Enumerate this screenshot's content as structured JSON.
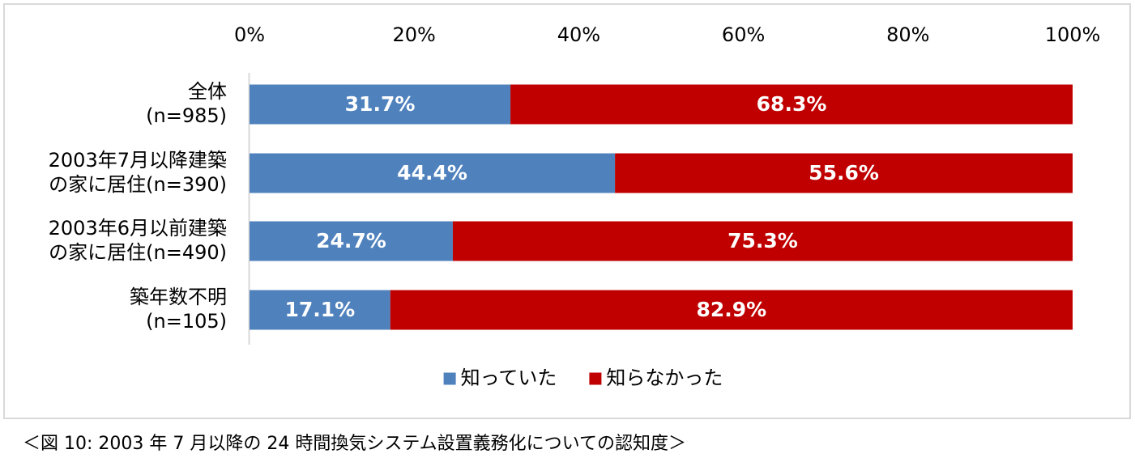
{
  "caption": "＜図 10: 2003 年 7 月以降の 24 時間換気システム設置義務化についての認知度＞",
  "chart_data": {
    "type": "bar",
    "orientation": "horizontal",
    "stacked": true,
    "percent_stacked": true,
    "categories": [
      [
        "全体",
        "(n=985)"
      ],
      [
        "2003年7月以降建築",
        "の家に居住(n=390)"
      ],
      [
        "2003年6月以前建築",
        "の家に居住(n=490)"
      ],
      [
        "築年数不明",
        "(n=105)"
      ]
    ],
    "series": [
      {
        "name": "知っていた",
        "color": "#4f81bd",
        "values": [
          31.7,
          44.4,
          24.7,
          17.1
        ],
        "labels": [
          "31.7%",
          "44.4%",
          "24.7%",
          "17.1%"
        ]
      },
      {
        "name": "知らなかった",
        "color": "#c00000",
        "values": [
          68.3,
          55.6,
          75.3,
          82.9
        ],
        "labels": [
          "68.3%",
          "55.6%",
          "75.3%",
          "82.9%"
        ]
      }
    ],
    "xlim": [
      0,
      100
    ],
    "xticks": [
      "0%",
      "20%",
      "40%",
      "60%",
      "80%",
      "100%"
    ],
    "axis_position": "top",
    "legend_position": "bottom",
    "grid": false
  }
}
